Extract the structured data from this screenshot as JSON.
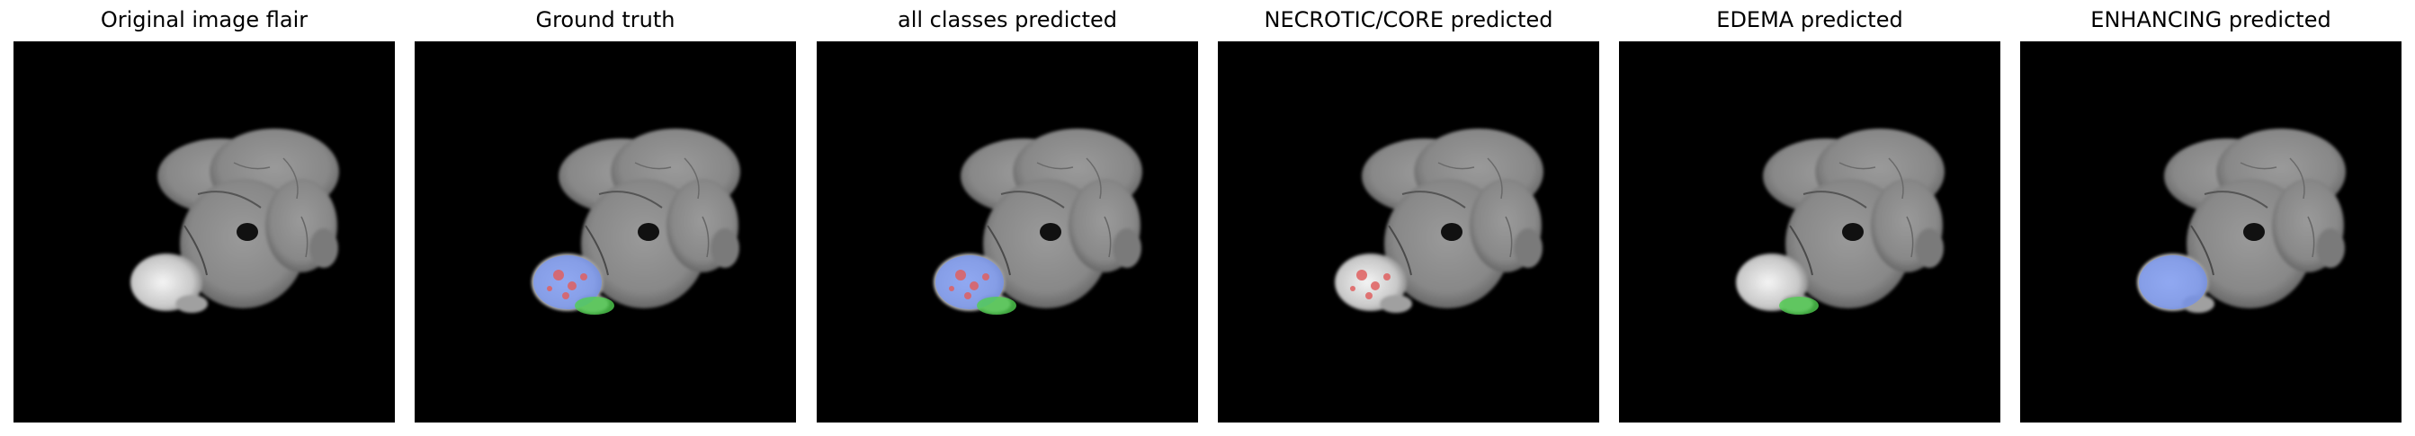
{
  "panels": [
    {
      "title": "Original image flair",
      "overlay": "none"
    },
    {
      "title": "Ground truth",
      "overlay": "all"
    },
    {
      "title": "all classes predicted",
      "overlay": "all"
    },
    {
      "title": "NECROTIC/CORE predicted",
      "overlay": "necrotic"
    },
    {
      "title": "EDEMA predicted",
      "overlay": "edema"
    },
    {
      "title": "ENHANCING predicted",
      "overlay": "enhancing"
    }
  ],
  "colors": {
    "necrotic": "#e06060",
    "edema": "#50d050",
    "enhancing": "#6f8ff0",
    "brain": "#8c8c8c",
    "background": "#000000"
  }
}
